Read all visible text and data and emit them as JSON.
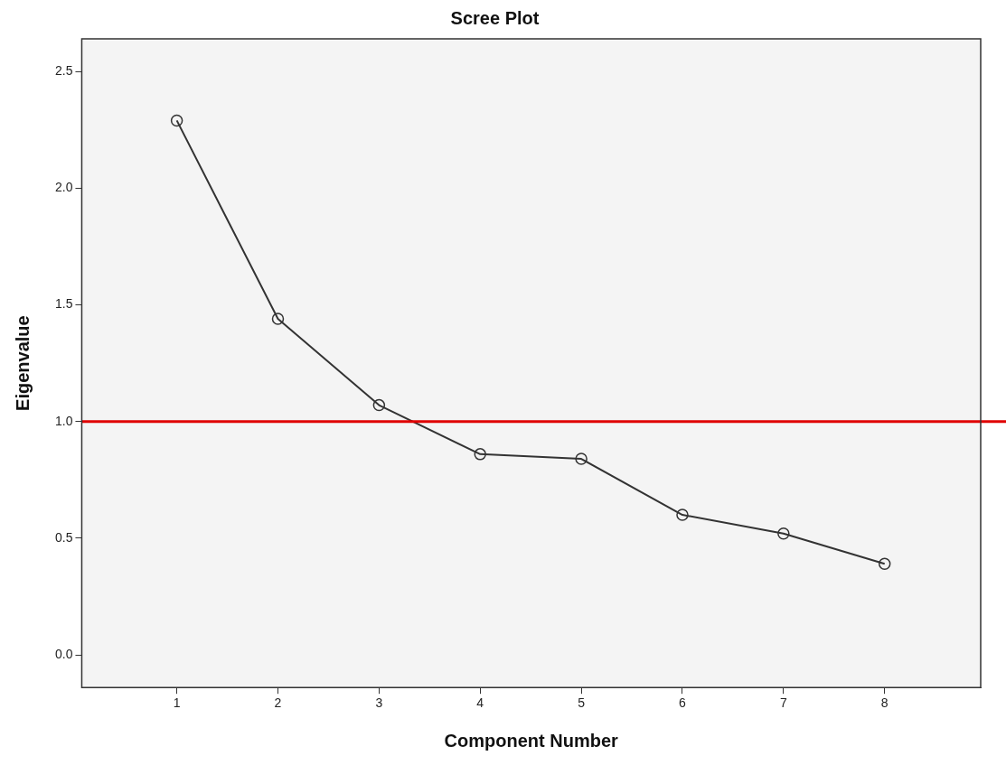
{
  "chart_data": {
    "type": "line",
    "title": "Scree Plot",
    "xlabel": "Component Number",
    "ylabel": "Eigenvalue",
    "x": [
      1,
      2,
      3,
      4,
      5,
      6,
      7,
      8
    ],
    "series": [
      {
        "color": "#333333",
        "values": [
          2.29,
          1.44,
          1.07,
          0.86,
          0.84,
          0.6,
          0.52,
          0.39
        ]
      }
    ],
    "xlim": [
      0.06,
      8.95
    ],
    "xticks": [
      1,
      2,
      3,
      4,
      5,
      6,
      7,
      8
    ],
    "ylim": [
      -0.14,
      2.64
    ],
    "yticks": [
      {
        "value": 0,
        "label": "0.0"
      },
      {
        "value": 0.5,
        "label": "0.5"
      },
      {
        "value": 1,
        "label": "1.0"
      },
      {
        "value": 1.5,
        "label": "1.5"
      },
      {
        "value": 2,
        "label": "2.0"
      },
      {
        "value": 2.5,
        "label": "2.5"
      }
    ],
    "ref_lines": [
      {
        "axis": "y",
        "value": 1,
        "color": "#e00000"
      }
    ],
    "grid": false,
    "legend": false,
    "marker": "circle",
    "line_style": "solid"
  }
}
